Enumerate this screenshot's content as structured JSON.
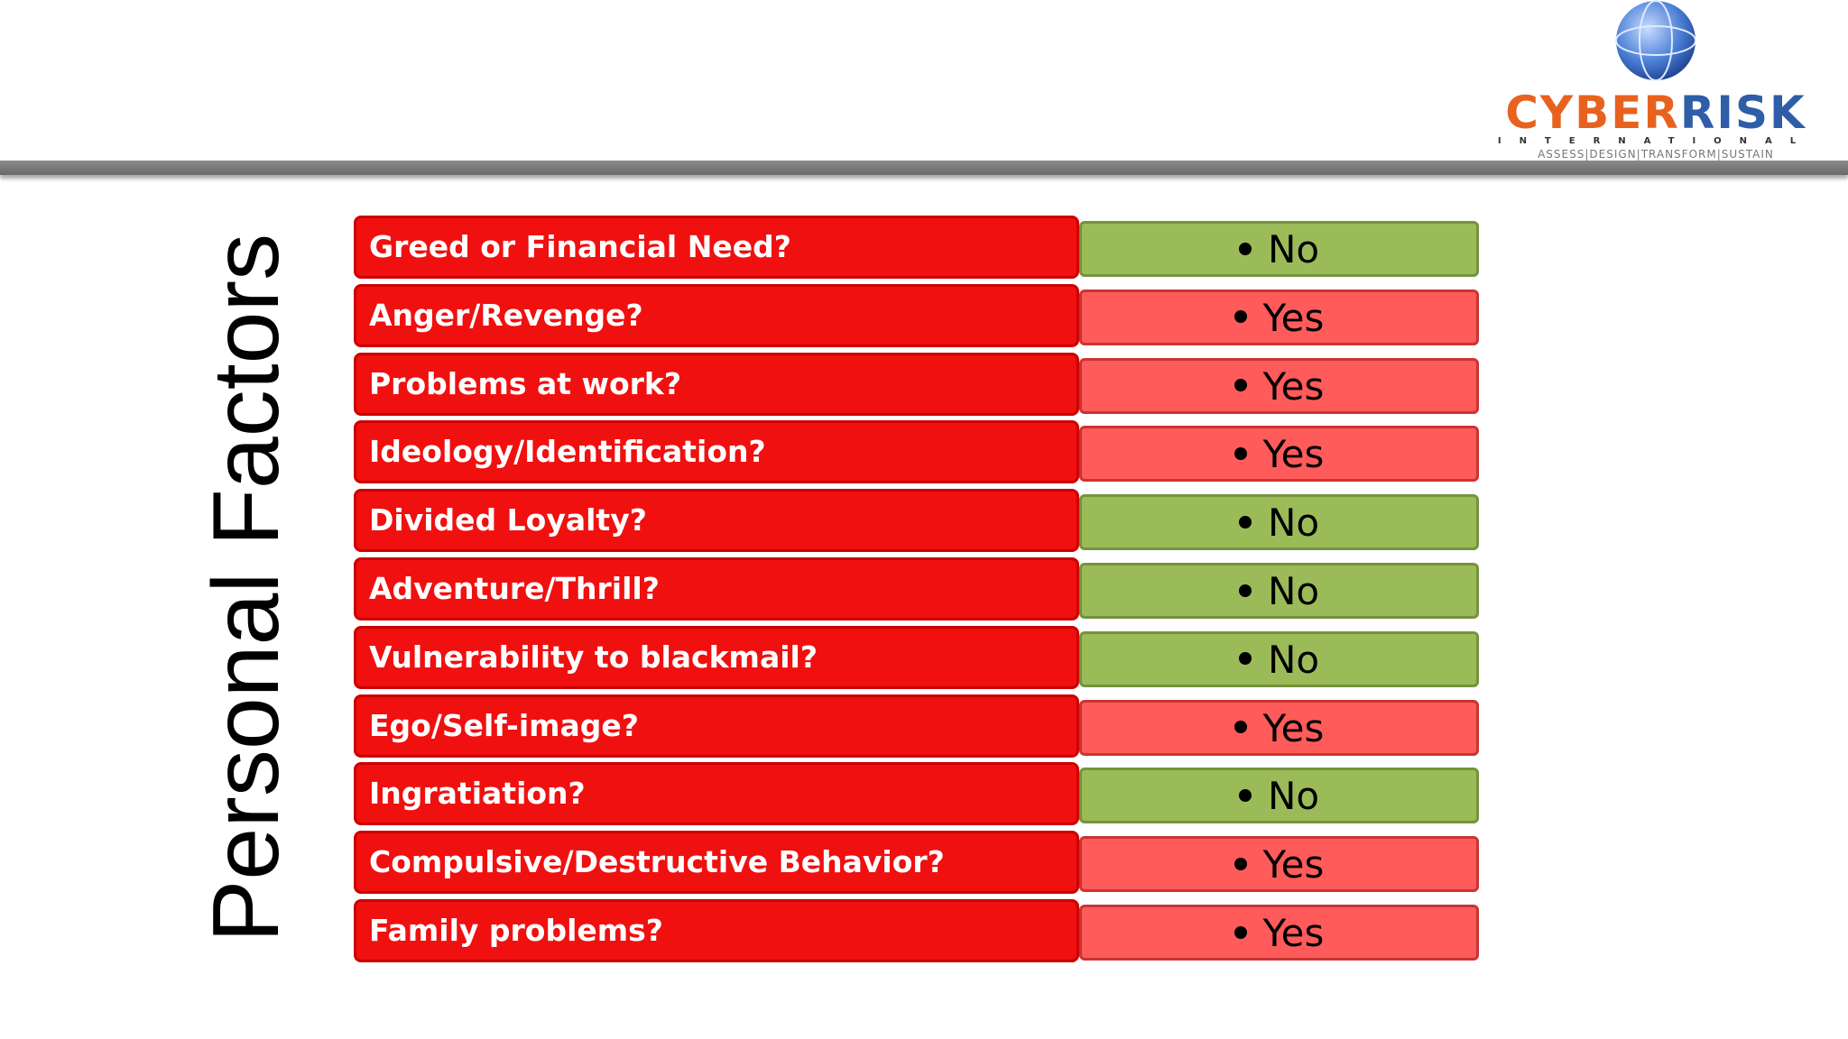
{
  "logo": {
    "brand_part1": "CYBER",
    "brand_part2": "RISK",
    "subtitle": "INTERNATIONAL",
    "tagline": "ASSESS|DESIGN|TRANSFORM|SUSTAIN"
  },
  "title": "Personal Factors",
  "rows": [
    {
      "question": "Greed or Financial Need?",
      "answer": "No",
      "color": "#9bbb59"
    },
    {
      "question": "Anger/Revenge?",
      "answer": "Yes",
      "color": "#ff5b5b"
    },
    {
      "question": "Problems at work?",
      "answer": "Yes",
      "color": "#ff5b5b"
    },
    {
      "question": "Ideology/Identification?",
      "answer": "Yes",
      "color": "#ff5b5b"
    },
    {
      "question": "Divided Loyalty?",
      "answer": "No",
      "color": "#9bbb59"
    },
    {
      "question": "Adventure/Thrill?",
      "answer": "No",
      "color": "#9bbb59"
    },
    {
      "question": "Vulnerability to blackmail?",
      "answer": "No",
      "color": "#9bbb59"
    },
    {
      "question": "Ego/Self-image?",
      "answer": "Yes",
      "color": "#ff5b5b"
    },
    {
      "question": "Ingratiation?",
      "answer": "No",
      "color": "#9bbb59"
    },
    {
      "question": "Compulsive/Destructive Behavior?",
      "answer": "Yes",
      "color": "#ff5b5b"
    },
    {
      "question": "Family problems?",
      "answer": "Yes",
      "color": "#ff5b5b"
    }
  ]
}
